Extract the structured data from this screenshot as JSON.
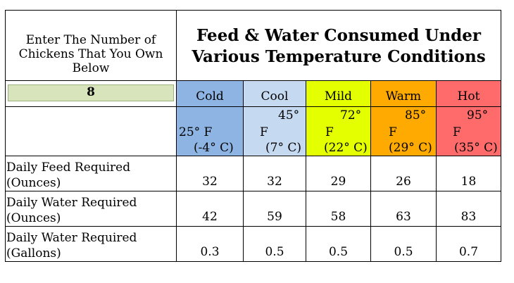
{
  "prompt": {
    "line1": "Enter The Number of",
    "line2": "Chickens That You Own",
    "line3": "Below"
  },
  "title": {
    "line1": "Feed & Water Consumed Under",
    "line2": "Various Temperature Conditions"
  },
  "chickens_input": {
    "value": "8"
  },
  "conditions": [
    {
      "label": "Cold",
      "color": "#8db4e3",
      "temp_f": "25° F",
      "temp_c": "(-4° C)"
    },
    {
      "label": "Cool",
      "color": "#c5d9f1",
      "temp_f_top": "45°",
      "temp_f_unit": "F",
      "temp_c": "(7° C)"
    },
    {
      "label": "Mild",
      "color": "#e4ff00",
      "temp_f_top": "72°",
      "temp_f_unit": "F",
      "temp_c": "(22° C)"
    },
    {
      "label": "Warm",
      "color": "#ffaa00",
      "temp_f_top": "85°",
      "temp_f_unit": "F",
      "temp_c": "(29° C)"
    },
    {
      "label": "Hot",
      "color": "#ff6b6b",
      "temp_f_top": "95°",
      "temp_f_unit": "F",
      "temp_c": "(35° C)"
    }
  ],
  "rows": [
    {
      "label1": "Daily Feed Required",
      "label2": "(Ounces)",
      "values": [
        "32",
        "32",
        "29",
        "26",
        "18"
      ]
    },
    {
      "label1": "Daily Water Required",
      "label2": "(Ounces)",
      "values": [
        "42",
        "59",
        "58",
        "63",
        "83"
      ]
    },
    {
      "label1": "Daily Water Required",
      "label2": "(Gallons)",
      "values": [
        "0.3",
        "0.5",
        "0.5",
        "0.5",
        "0.7"
      ]
    }
  ]
}
